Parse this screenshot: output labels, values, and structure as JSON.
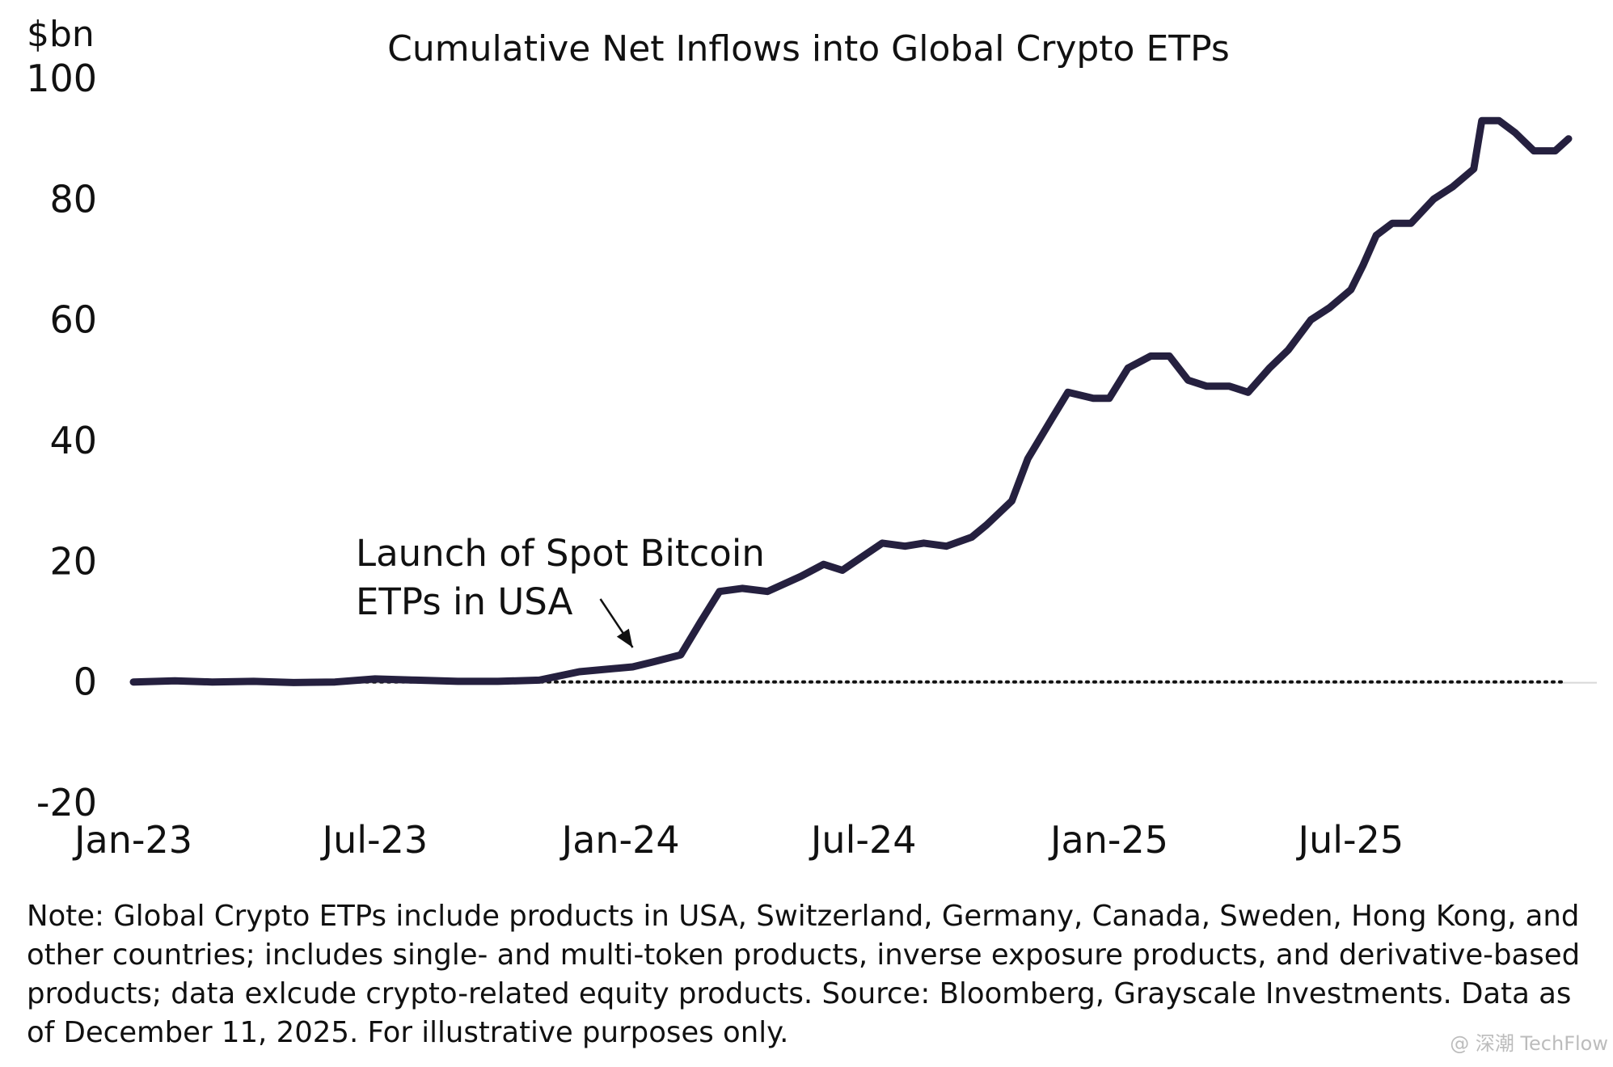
{
  "chart_data": {
    "type": "line",
    "title": "Cumulative Net Inflows into Global Crypto ETPs",
    "unit_label": "$bn",
    "y_ticks": [
      "100",
      "80",
      "60",
      "40",
      "20",
      "0",
      "-20"
    ],
    "ylim": [
      -20,
      100
    ],
    "x_ticks": [
      "Jan-23",
      "Jul-23",
      "Jan-24",
      "Jul-24",
      "Jan-25",
      "Jul-25"
    ],
    "xlim": [
      "2023-01-01",
      "2025-12-11"
    ],
    "grid": false,
    "zero_line_style": "dotted",
    "line_color": "#25203f",
    "series": [
      {
        "x": [
          "2023-01-01",
          "2023-02-01",
          "2023-03-01",
          "2023-04-01",
          "2023-05-01",
          "2023-06-01",
          "2023-07-01",
          "2023-08-01",
          "2023-09-01",
          "2023-10-01",
          "2023-11-01",
          "2023-12-01",
          "2024-01-10",
          "2024-01-25",
          "2024-02-15",
          "2024-03-01",
          "2024-03-15",
          "2024-04-01",
          "2024-04-20",
          "2024-05-15",
          "2024-06-01",
          "2024-06-15",
          "2024-07-15",
          "2024-08-01",
          "2024-08-15",
          "2024-09-01",
          "2024-09-20",
          "2024-10-01",
          "2024-10-20",
          "2024-11-01",
          "2024-11-20",
          "2024-12-01",
          "2024-12-20",
          "2025-01-01",
          "2025-01-15",
          "2025-02-01",
          "2025-02-15",
          "2025-03-01",
          "2025-03-15",
          "2025-04-01",
          "2025-04-15",
          "2025-05-01",
          "2025-05-15",
          "2025-06-01",
          "2025-06-15",
          "2025-07-01",
          "2025-07-10",
          "2025-07-20",
          "2025-08-01",
          "2025-08-15",
          "2025-09-01",
          "2025-09-15",
          "2025-10-01",
          "2025-10-07",
          "2025-10-20",
          "2025-11-01",
          "2025-11-15",
          "2025-12-01",
          "2025-12-11"
        ],
        "values": [
          0,
          0.2,
          0,
          0.1,
          -0.1,
          0,
          0.5,
          0.3,
          0.1,
          0.1,
          0.3,
          1.7,
          2.5,
          3.3,
          4.5,
          10,
          15,
          15.5,
          15,
          17.5,
          19.5,
          18.5,
          23,
          22.5,
          23,
          22.5,
          24,
          26,
          30,
          37,
          44,
          48,
          47,
          47,
          52,
          54,
          54,
          50,
          49,
          49,
          48,
          52,
          55,
          60,
          62,
          65,
          69,
          74,
          76,
          76,
          80,
          82,
          85,
          93,
          93,
          91,
          88,
          88,
          90
        ]
      }
    ],
    "annotation": {
      "lines": [
        "Launch of Spot Bitcoin",
        "ETPs in USA"
      ],
      "points_to": "2024-01-10"
    }
  },
  "note": "Note: Global Crypto ETPs include products in USA, Switzerland, Germany, Canada, Sweden, Hong Kong, and other countries; includes single- and multi-token products, inverse exposure products, and derivative-based products; data exlcude crypto-related equity products. Source: Bloomberg, Grayscale Investments. Data as of December 11, 2025. For illustrative purposes only.",
  "watermark": "@ 深潮 TechFlow"
}
